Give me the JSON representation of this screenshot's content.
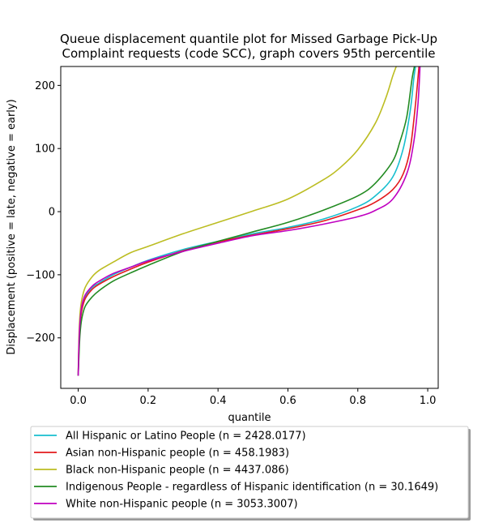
{
  "chart_data": {
    "type": "line",
    "title": "Queue displacement quantile plot for Missed Garbage Pick-Up\nComplaint  requests (code SCC), graph covers 95th percentile",
    "xlabel": "quantile",
    "ylabel": "Displacement (positive = late, negative = early)",
    "xlim": [
      -0.05,
      1.03
    ],
    "ylim": [
      -280,
      230
    ],
    "xticks": [
      0.0,
      0.2,
      0.4,
      0.6,
      0.8,
      1.0
    ],
    "xtick_labels": [
      "0.0",
      "0.2",
      "0.4",
      "0.6",
      "0.8",
      "1.0"
    ],
    "yticks": [
      -200,
      -100,
      0,
      100,
      200
    ],
    "ytick_labels": [
      "−200",
      "−100",
      "0",
      "100",
      "200"
    ],
    "legend_position": "below",
    "series": [
      {
        "name": "All Hispanic or Latino People (n = 2428.0177)",
        "color": "#17becf",
        "x": [
          0.0,
          0.002,
          0.005,
          0.01,
          0.02,
          0.04,
          0.06,
          0.1,
          0.15,
          0.2,
          0.3,
          0.4,
          0.5,
          0.6,
          0.7,
          0.8,
          0.85,
          0.9,
          0.93,
          0.95,
          0.96,
          0.965
        ],
        "y": [
          -260,
          -215,
          -180,
          -155,
          -135,
          -120,
          -113,
          -100,
          -88,
          -77,
          -60,
          -47,
          -35,
          -25,
          -12,
          8,
          25,
          55,
          100,
          160,
          210,
          230
        ]
      },
      {
        "name": "Asian non-Hispanic people (n = 458.1983)",
        "color": "#e31a1c",
        "x": [
          0.0,
          0.002,
          0.005,
          0.01,
          0.02,
          0.04,
          0.06,
          0.1,
          0.15,
          0.2,
          0.3,
          0.4,
          0.5,
          0.6,
          0.7,
          0.8,
          0.85,
          0.9,
          0.93,
          0.95,
          0.965,
          0.975
        ],
        "y": [
          -260,
          -215,
          -180,
          -157,
          -138,
          -123,
          -115,
          -103,
          -91,
          -80,
          -62,
          -48,
          -37,
          -27,
          -15,
          3,
          15,
          35,
          60,
          100,
          170,
          230
        ]
      },
      {
        "name": "Black non-Hispanic people (n = 4437.086)",
        "color": "#bcbd22",
        "x": [
          0.0,
          0.002,
          0.005,
          0.01,
          0.02,
          0.04,
          0.06,
          0.1,
          0.15,
          0.2,
          0.3,
          0.4,
          0.5,
          0.6,
          0.7,
          0.75,
          0.8,
          0.85,
          0.88,
          0.9,
          0.91
        ],
        "y": [
          -255,
          -200,
          -163,
          -140,
          -120,
          -103,
          -93,
          -80,
          -65,
          -55,
          -35,
          -17,
          1,
          20,
          50,
          70,
          98,
          140,
          180,
          215,
          230
        ]
      },
      {
        "name": "Indigenous People - regardless of Hispanic identification (n = 30.1649)",
        "color": "#228b22",
        "x": [
          0.0,
          0.002,
          0.005,
          0.01,
          0.02,
          0.04,
          0.06,
          0.1,
          0.15,
          0.2,
          0.3,
          0.4,
          0.5,
          0.6,
          0.7,
          0.8,
          0.85,
          0.9,
          0.92,
          0.94,
          0.955,
          0.962
        ],
        "y": [
          -260,
          -230,
          -195,
          -170,
          -150,
          -135,
          -125,
          -110,
          -97,
          -85,
          -63,
          -47,
          -32,
          -17,
          2,
          25,
          45,
          80,
          110,
          150,
          210,
          230
        ]
      },
      {
        "name": "White non-Hispanic people (n = 3053.3007)",
        "color": "#c000c0",
        "x": [
          0.0,
          0.002,
          0.005,
          0.01,
          0.02,
          0.04,
          0.06,
          0.1,
          0.15,
          0.2,
          0.3,
          0.4,
          0.5,
          0.6,
          0.7,
          0.8,
          0.85,
          0.9,
          0.94,
          0.96,
          0.972,
          0.978
        ],
        "y": [
          -260,
          -210,
          -175,
          -150,
          -132,
          -118,
          -110,
          -98,
          -88,
          -78,
          -63,
          -50,
          -38,
          -30,
          -20,
          -8,
          2,
          20,
          60,
          110,
          170,
          230
        ]
      }
    ]
  }
}
